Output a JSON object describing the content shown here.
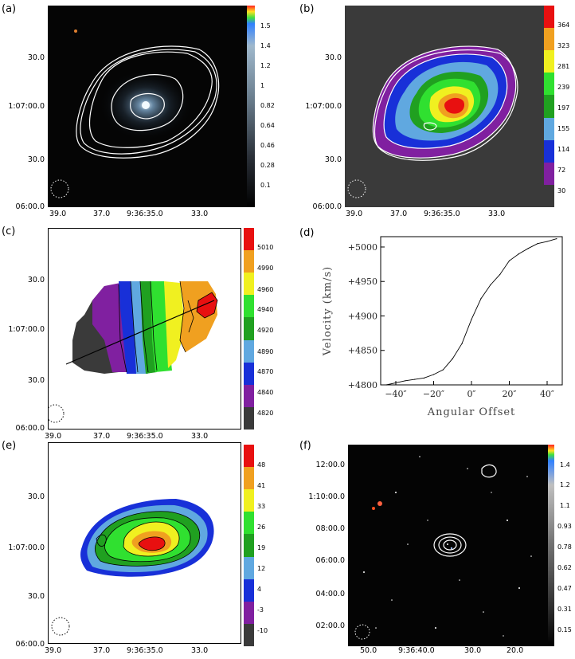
{
  "panels": {
    "a": {
      "label": "(a)",
      "yticks": [
        "30.0",
        "1:07:00.0",
        "30.0",
        "06:00.0"
      ],
      "xticks": [
        "39.0",
        "37.0",
        "9:36:35.0",
        "33.0"
      ],
      "cbar": [
        "1.5",
        "1.4",
        "1.2",
        "1",
        "0.82",
        "0.64",
        "0.46",
        "0.28",
        "0.1"
      ]
    },
    "b": {
      "label": "(b)",
      "yticks": [
        "30.0",
        "1:07:00.0",
        "30.0",
        "06:00.0"
      ],
      "xticks": [
        "39.0",
        "37.0",
        "9:36:35.0",
        "33.0"
      ],
      "cbar": [
        "364",
        "323",
        "281",
        "239",
        "197",
        "155",
        "114",
        "72",
        "30"
      ],
      "cbar_colors": [
        "#e81010",
        "#f0a020",
        "#f0f020",
        "#30e030",
        "#20a020",
        "#60a8e0",
        "#1830d8",
        "#8020a0",
        "#3a3a3a"
      ]
    },
    "c": {
      "label": "(c)",
      "yticks": [
        "30.0",
        "1:07:00.0",
        "30.0",
        "06:00.0"
      ],
      "xticks": [
        "39.0",
        "37.0",
        "9:36:35.0",
        "33.0"
      ],
      "cbar": [
        "5010",
        "4990",
        "4960",
        "4940",
        "4920",
        "4890",
        "4870",
        "4840",
        "4820"
      ],
      "cbar_colors": [
        "#e81010",
        "#f0a020",
        "#f0f020",
        "#30e030",
        "#20a020",
        "#60a8e0",
        "#1830d8",
        "#8020a0",
        "#3a3a3a"
      ]
    },
    "d": {
      "label": "(d)",
      "ylabel": "Velocity (km/s)",
      "xlabel": "Angular Offset",
      "yticks": [
        "+5000",
        "+4950",
        "+4900",
        "+4850",
        "+4800"
      ],
      "xticks": [
        "−40″",
        "−20″",
        "0″",
        "20″",
        "40″"
      ]
    },
    "e": {
      "label": "(e)",
      "yticks": [
        "30.0",
        "1:07:00.0",
        "30.0",
        "06:00.0"
      ],
      "xticks": [
        "39.0",
        "37.0",
        "9:36:35.0",
        "33.0"
      ],
      "cbar": [
        "48",
        "41",
        "33",
        "26",
        "19",
        "12",
        "4",
        "-3",
        "-10"
      ],
      "cbar_colors": [
        "#e81010",
        "#f0a020",
        "#f0f020",
        "#30e030",
        "#20a020",
        "#60a8e0",
        "#1830d8",
        "#8020a0",
        "#3a3a3a"
      ]
    },
    "f": {
      "label": "(f)",
      "yticks": [
        "12:00.0",
        "1:10:00.0",
        "08:00.0",
        "06:00.0",
        "04:00.0",
        "02:00.0"
      ],
      "xticks": [
        "50.0",
        "9:36:40.0",
        "30.0",
        "20.0"
      ],
      "cbar": [
        "1.4",
        "1.2",
        "1.1",
        "0.93",
        "0.78",
        "0.62",
        "0.47",
        "0.31",
        "0.15"
      ]
    }
  },
  "chart_data": {
    "type": "line",
    "x": [
      -45,
      -40,
      -35,
      -30,
      -25,
      -20,
      -15,
      -10,
      -5,
      0,
      5,
      10,
      15,
      20,
      25,
      30,
      35,
      40,
      45
    ],
    "values": [
      4800,
      4803,
      4806,
      4808,
      4810,
      4815,
      4822,
      4838,
      4860,
      4895,
      4925,
      4945,
      4960,
      4980,
      4990,
      4998,
      5005,
      5008,
      5012
    ],
    "xlabel": "Angular Offset",
    "ylabel": "Velocity (km/s)",
    "xlim": [
      -48,
      48
    ],
    "ylim": [
      4800,
      5015
    ]
  }
}
